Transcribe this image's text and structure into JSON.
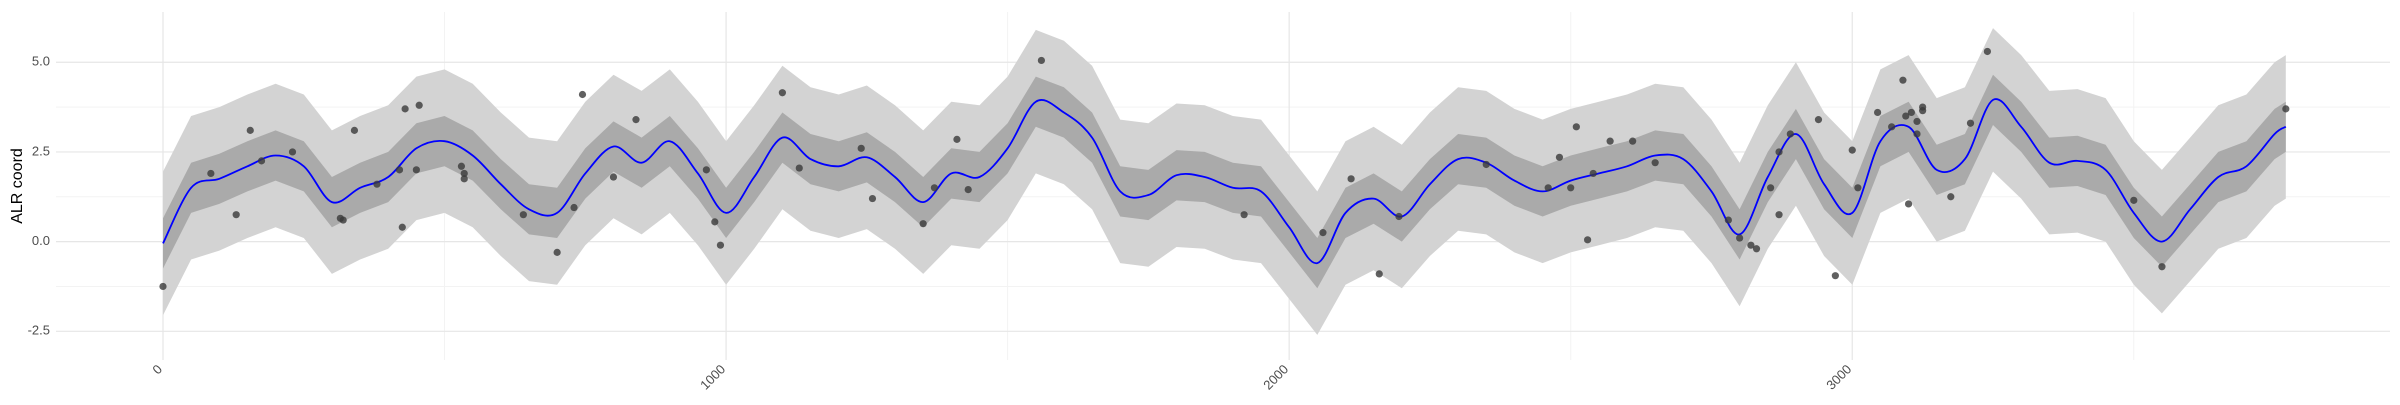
{
  "chart_data": {
    "type": "line",
    "y_label": "ALR coord",
    "xlim": [
      -190,
      3955
    ],
    "ylim": [
      -3.3,
      6.4
    ],
    "xticks": [
      0,
      1000,
      2000,
      3000
    ],
    "yticks": [
      {
        "value": -2.5,
        "label": "-2.5"
      },
      {
        "value": 0,
        "label": "0.0"
      },
      2.5,
      {
        "value": 5,
        "label": "5.0"
      }
    ],
    "xminorticks": [
      500,
      1500,
      2500,
      3500
    ],
    "yminorticks": [
      -1.25,
      1.25,
      3.75
    ],
    "grid": true,
    "x": [
      0,
      50,
      100,
      150,
      200,
      250,
      300,
      350,
      400,
      450,
      500,
      550,
      600,
      650,
      700,
      750,
      800,
      850,
      900,
      950,
      1000,
      1050,
      1100,
      1150,
      1200,
      1250,
      1300,
      1350,
      1400,
      1450,
      1500,
      1550,
      1600,
      1650,
      1700,
      1750,
      1800,
      1850,
      1900,
      1950,
      2000,
      2050,
      2100,
      2150,
      2200,
      2250,
      2300,
      2350,
      2400,
      2450,
      2500,
      2550,
      2600,
      2650,
      2700,
      2750,
      2800,
      2850,
      2900,
      2950,
      3000,
      3050,
      3100,
      3150,
      3200,
      3250,
      3300,
      3350,
      3400,
      3450,
      3500,
      3550,
      3600,
      3650,
      3700,
      3750,
      3770
    ],
    "bands": [
      {
        "color": "#d3d3d3",
        "lower": [
          -2.05,
          -0.5,
          -0.25,
          0.1,
          0.4,
          0.1,
          -0.9,
          -0.5,
          -0.2,
          0.6,
          0.8,
          0.4,
          -0.4,
          -1.1,
          -1.2,
          -0.1,
          0.65,
          0.2,
          0.8,
          -0.1,
          -1.2,
          -0.2,
          0.9,
          0.3,
          0.1,
          0.35,
          -0.2,
          -0.9,
          -0.1,
          -0.2,
          0.6,
          1.9,
          1.6,
          0.9,
          -0.6,
          -0.7,
          -0.15,
          -0.2,
          -0.5,
          -0.6,
          -1.6,
          -2.6,
          -1.2,
          -0.8,
          -1.3,
          -0.4,
          0.3,
          0.2,
          -0.3,
          -0.6,
          -0.3,
          -0.1,
          0.1,
          0.4,
          0.3,
          -0.6,
          -1.8,
          -0.2,
          1.0,
          -0.4,
          -1.2,
          0.8,
          1.2,
          0.0,
          0.3,
          1.95,
          1.2,
          0.2,
          0.25,
          0.0,
          -1.2,
          -2.0,
          -1.1,
          -0.2,
          0.1,
          1.0,
          1.2
        ],
        "upper": [
          1.95,
          3.5,
          3.75,
          4.1,
          4.4,
          4.1,
          3.1,
          3.5,
          3.8,
          4.6,
          4.8,
          4.4,
          3.6,
          2.9,
          2.8,
          3.9,
          4.65,
          4.2,
          4.8,
          3.9,
          2.8,
          3.8,
          4.9,
          4.3,
          4.1,
          4.35,
          3.8,
          3.1,
          3.9,
          3.8,
          4.6,
          5.9,
          5.6,
          4.9,
          3.4,
          3.3,
          3.85,
          3.8,
          3.5,
          3.4,
          2.4,
          1.4,
          2.8,
          3.2,
          2.7,
          3.6,
          4.3,
          4.2,
          3.7,
          3.4,
          3.7,
          3.9,
          4.1,
          4.4,
          4.3,
          3.4,
          2.2,
          3.8,
          5.0,
          3.6,
          2.8,
          4.8,
          5.2,
          4.0,
          4.3,
          5.95,
          5.2,
          4.2,
          4.25,
          4.0,
          2.8,
          2.0,
          2.9,
          3.8,
          4.1,
          5.0,
          5.2
        ]
      },
      {
        "color": "#aaaaaa",
        "lower": [
          -0.75,
          0.8,
          1.05,
          1.4,
          1.7,
          1.4,
          0.4,
          0.8,
          1.1,
          1.9,
          2.1,
          1.7,
          0.9,
          0.2,
          0.1,
          1.2,
          1.95,
          1.5,
          2.1,
          1.2,
          0.1,
          1.1,
          2.2,
          1.6,
          1.4,
          1.65,
          1.1,
          0.4,
          1.2,
          1.1,
          1.9,
          3.2,
          2.9,
          2.2,
          0.7,
          0.6,
          1.15,
          1.1,
          0.8,
          0.7,
          -0.3,
          -1.3,
          0.1,
          0.5,
          0.0,
          0.9,
          1.6,
          1.5,
          1.0,
          0.7,
          1.0,
          1.2,
          1.4,
          1.7,
          1.6,
          0.7,
          -0.5,
          1.1,
          2.3,
          0.9,
          0.1,
          2.1,
          2.5,
          1.3,
          1.6,
          3.25,
          2.5,
          1.5,
          1.55,
          1.3,
          0.1,
          -0.7,
          0.2,
          1.1,
          1.4,
          2.3,
          2.5
        ],
        "upper": [
          0.65,
          2.2,
          2.45,
          2.8,
          3.1,
          2.8,
          1.8,
          2.2,
          2.5,
          3.3,
          3.5,
          3.1,
          2.3,
          1.6,
          1.5,
          2.6,
          3.35,
          2.9,
          3.5,
          2.6,
          1.5,
          2.5,
          3.6,
          3.0,
          2.8,
          3.05,
          2.5,
          1.8,
          2.6,
          2.5,
          3.3,
          4.6,
          4.3,
          3.6,
          2.1,
          2.0,
          2.55,
          2.5,
          2.2,
          2.1,
          1.1,
          0.1,
          1.5,
          1.9,
          1.4,
          2.3,
          3.0,
          2.9,
          2.4,
          2.1,
          2.4,
          2.6,
          2.8,
          3.1,
          3.0,
          2.1,
          0.9,
          2.5,
          3.7,
          2.3,
          1.5,
          3.5,
          3.9,
          2.7,
          3.0,
          4.65,
          3.9,
          2.9,
          2.95,
          2.7,
          1.5,
          0.7,
          1.6,
          2.5,
          2.8,
          3.7,
          3.9
        ]
      }
    ],
    "series": [
      {
        "color": "#0000ff",
        "values": [
          -0.05,
          1.5,
          1.75,
          2.1,
          2.4,
          2.1,
          1.1,
          1.5,
          1.8,
          2.6,
          2.8,
          2.4,
          1.6,
          0.9,
          0.8,
          1.9,
          2.65,
          2.2,
          2.8,
          1.9,
          0.8,
          1.8,
          2.9,
          2.3,
          2.1,
          2.35,
          1.8,
          1.1,
          1.9,
          1.8,
          2.6,
          3.9,
          3.6,
          2.9,
          1.4,
          1.3,
          1.85,
          1.8,
          1.5,
          1.4,
          0.4,
          -0.6,
          0.8,
          1.2,
          0.7,
          1.6,
          2.3,
          2.2,
          1.7,
          1.4,
          1.7,
          1.9,
          2.1,
          2.4,
          2.3,
          1.4,
          0.2,
          1.8,
          3.0,
          1.6,
          0.8,
          2.8,
          3.2,
          2.0,
          2.3,
          3.95,
          3.2,
          2.2,
          2.25,
          2.0,
          0.8,
          0.0,
          0.9,
          1.8,
          2.1,
          3.0,
          3.2
        ]
      }
    ],
    "points": {
      "color": "#3a3a3a",
      "x": [
        0,
        85,
        130,
        155,
        175,
        230,
        315,
        320,
        340,
        380,
        420,
        425,
        430,
        455,
        450,
        530,
        535,
        535,
        640,
        700,
        730,
        745,
        800,
        840,
        965,
        980,
        990,
        1100,
        1130,
        1240,
        1260,
        1350,
        1370,
        1410,
        1430,
        1560,
        1920,
        2060,
        2110,
        2160,
        2195,
        2350,
        2460,
        2480,
        2500,
        2510,
        2530,
        2540,
        2570,
        2610,
        2650,
        2780,
        2800,
        2820,
        2830,
        2855,
        2870,
        2870,
        2890,
        2940,
        2970,
        3000,
        3010,
        3045,
        3070,
        3090,
        3095,
        3100,
        3105,
        3115,
        3115,
        3125,
        3125,
        3175,
        3210,
        3240,
        3500,
        3550,
        3770
      ],
      "y": [
        -1.25,
        1.9,
        0.75,
        3.1,
        2.25,
        2.5,
        0.65,
        0.6,
        3.1,
        1.6,
        2.0,
        0.4,
        3.7,
        3.8,
        2.0,
        2.1,
        1.9,
        1.75,
        0.75,
        -0.3,
        0.95,
        4.1,
        1.8,
        3.4,
        2.0,
        0.55,
        -0.1,
        4.15,
        2.05,
        2.6,
        1.2,
        0.5,
        1.5,
        2.85,
        1.45,
        5.05,
        0.75,
        0.25,
        1.75,
        -0.9,
        0.7,
        2.15,
        1.5,
        2.35,
        1.5,
        3.2,
        0.05,
        1.9,
        2.8,
        2.8,
        2.2,
        0.6,
        0.1,
        -0.1,
        -0.2,
        1.5,
        0.75,
        2.5,
        3.0,
        3.4,
        -0.95,
        2.55,
        1.5,
        3.6,
        3.2,
        4.5,
        3.5,
        1.05,
        3.6,
        3.0,
        3.35,
        3.65,
        3.75,
        1.25,
        3.3,
        5.3,
        1.15,
        -0.7,
        3.7
      ]
    }
  }
}
